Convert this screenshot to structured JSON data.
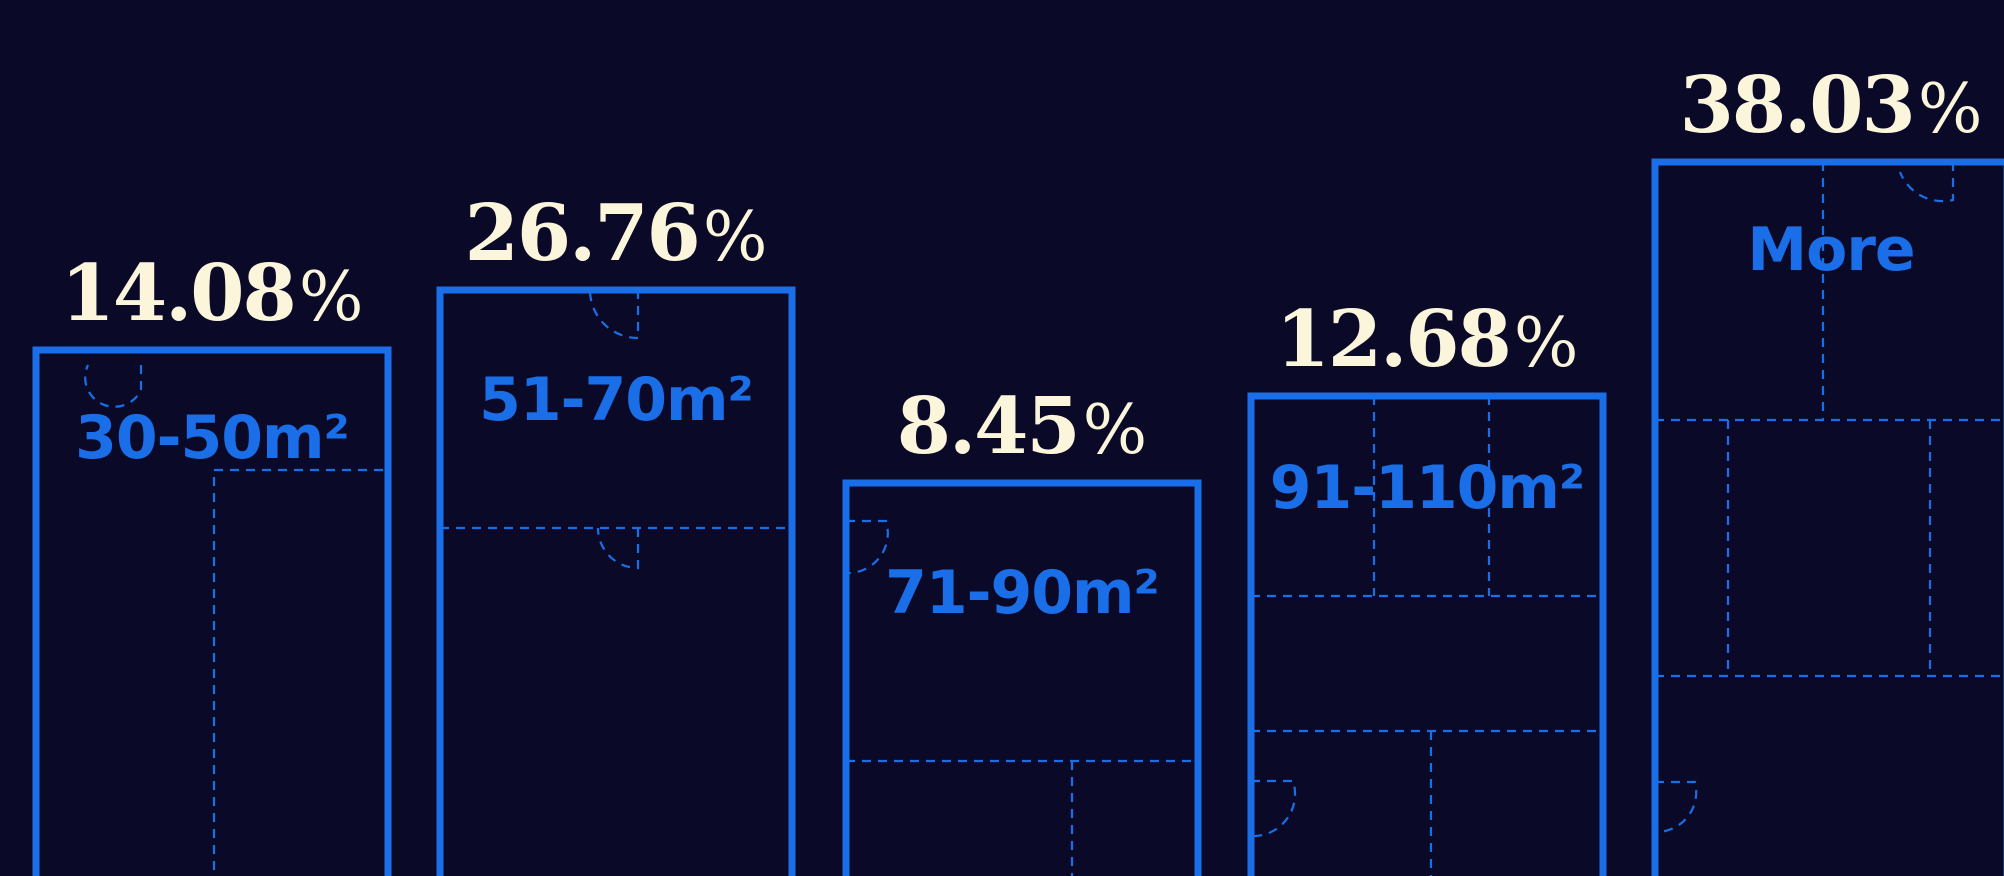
{
  "chart_data": {
    "type": "bar",
    "title": "",
    "xlabel": "",
    "ylabel": "",
    "legend": "none",
    "grid": false,
    "ylim": [
      0,
      40
    ],
    "categories": [
      "30-50m²",
      "51-70m²",
      "71-90m²",
      "91-110m²",
      "More"
    ],
    "values": [
      14.08,
      26.76,
      8.45,
      12.68,
      38.03
    ],
    "value_labels": [
      "14.08",
      "26.76",
      "8.45",
      "12.68",
      "38.03"
    ],
    "value_suffix": "%"
  },
  "colors": {
    "background": "#0a0a28",
    "bar": "#1a6fe8",
    "value_text": "#fbf5dc"
  },
  "icons": [
    "floor-plan-icon",
    "door-swing-icon"
  ]
}
